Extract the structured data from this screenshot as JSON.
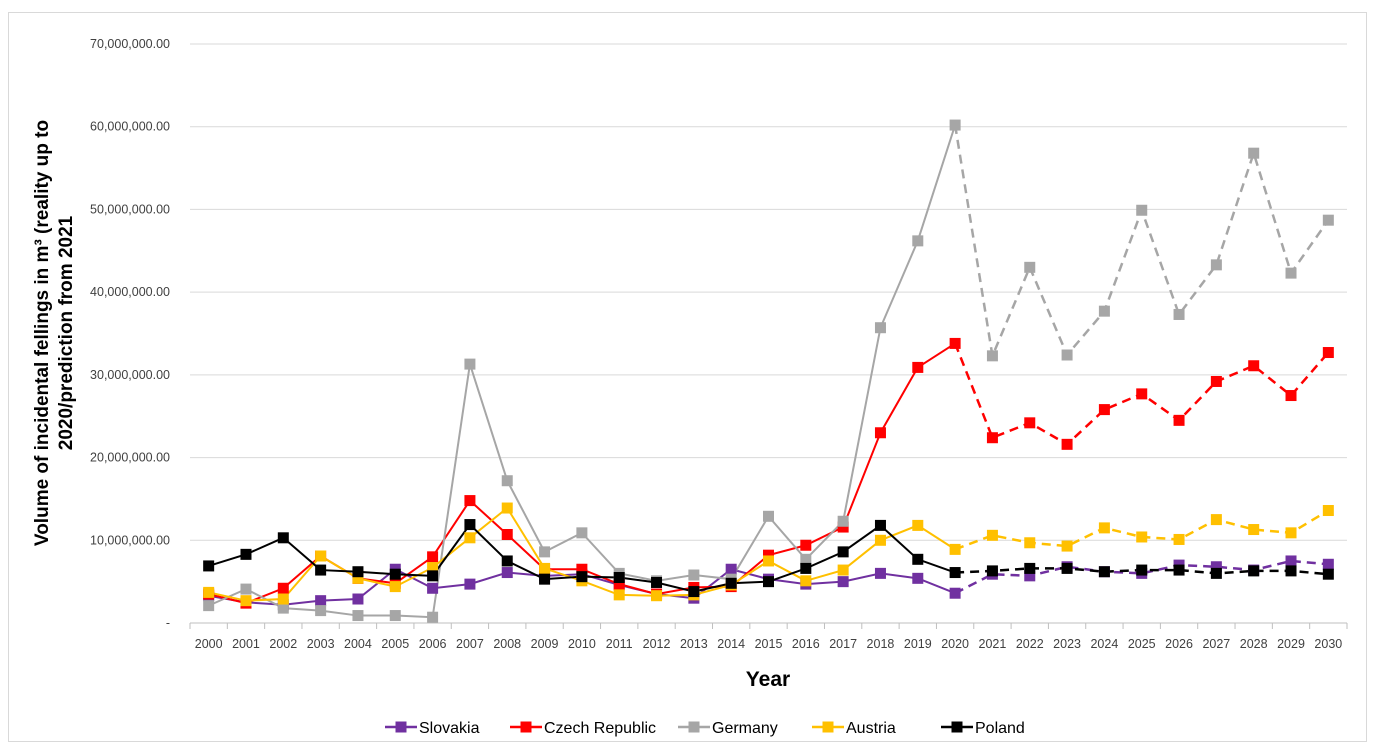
{
  "chart_data": {
    "type": "line",
    "xlabel": "Year",
    "ylabel": "Volume of incidental fellings in m³ (reality up to 2020/prediction from 2021",
    "ylim": [
      0,
      70000000
    ],
    "y_ticks": [
      0,
      10000000,
      20000000,
      30000000,
      40000000,
      50000000,
      60000000,
      70000000
    ],
    "y_tick_labels": [
      "-",
      "10,000,000.00",
      "20,000,000.00",
      "30,000,000.00",
      "40,000,000.00",
      "50,000,000.00",
      "60,000,000.00",
      "70,000,000.00"
    ],
    "x": [
      "2000",
      "2001",
      "2002",
      "2003",
      "2004",
      "2005",
      "2006",
      "2007",
      "2008",
      "2009",
      "2010",
      "2011",
      "2012",
      "2013",
      "2014",
      "2015",
      "2016",
      "2017",
      "2018",
      "2019",
      "2020",
      "2021",
      "2022",
      "2023",
      "2024",
      "2025",
      "2026",
      "2027",
      "2028",
      "2029",
      "2030"
    ],
    "reality_until": "2020",
    "prediction_from": "2021",
    "grid": "horizontal",
    "legend_position": "bottom",
    "marker": "square",
    "series": [
      {
        "name": "Slovakia",
        "color": "#7030a0",
        "values": [
          3300000,
          2500000,
          2200000,
          2700000,
          2900000,
          6500000,
          4200000,
          4700000,
          6100000,
          5700000,
          5900000,
          4600000,
          3500000,
          3000000,
          6500000,
          5300000,
          4700000,
          5000000,
          6000000,
          5400000,
          3600000,
          5900000,
          5700000,
          6800000,
          6200000,
          6000000,
          7000000,
          6800000,
          6400000,
          7500000,
          7100000
        ]
      },
      {
        "name": "Czech Republic",
        "color": "#ff0000",
        "values": [
          3500000,
          2400000,
          4200000,
          8100000,
          5400000,
          4800000,
          8000000,
          14800000,
          10700000,
          6500000,
          6500000,
          4700000,
          3500000,
          4300000,
          4400000,
          8200000,
          9400000,
          11600000,
          23000000,
          30900000,
          33800000,
          22400000,
          24200000,
          21600000,
          25800000,
          27700000,
          24500000,
          29200000,
          31100000,
          27500000,
          32700000
        ]
      },
      {
        "name": "Germany",
        "color": "#a6a6a6",
        "values": [
          2100000,
          4100000,
          1800000,
          1500000,
          900000,
          900000,
          700000,
          31300000,
          17200000,
          8600000,
          10900000,
          6000000,
          5100000,
          5800000,
          5300000,
          12900000,
          7700000,
          12300000,
          35700000,
          46200000,
          60200000,
          32300000,
          43000000,
          32400000,
          37700000,
          49900000,
          37300000,
          43300000,
          56800000,
          42300000,
          48700000
        ]
      },
      {
        "name": "Austria",
        "color": "#ffc000",
        "values": [
          3700000,
          2700000,
          2900000,
          8100000,
          5400000,
          4400000,
          6700000,
          10300000,
          13900000,
          6600000,
          5100000,
          3400000,
          3300000,
          3400000,
          4600000,
          7500000,
          5100000,
          6400000,
          10000000,
          11800000,
          8900000,
          10600000,
          9700000,
          9300000,
          11500000,
          10400000,
          10100000,
          12500000,
          11300000,
          10900000,
          13600000
        ]
      },
      {
        "name": "Poland",
        "color": "#000000",
        "values": [
          6900000,
          8300000,
          10300000,
          6400000,
          6200000,
          5900000,
          5700000,
          11900000,
          7500000,
          5300000,
          5600000,
          5500000,
          4900000,
          3800000,
          4800000,
          5000000,
          6600000,
          8600000,
          11800000,
          7700000,
          6100000,
          6300000,
          6600000,
          6600000,
          6200000,
          6400000,
          6400000,
          6000000,
          6300000,
          6300000,
          5900000
        ]
      }
    ]
  }
}
